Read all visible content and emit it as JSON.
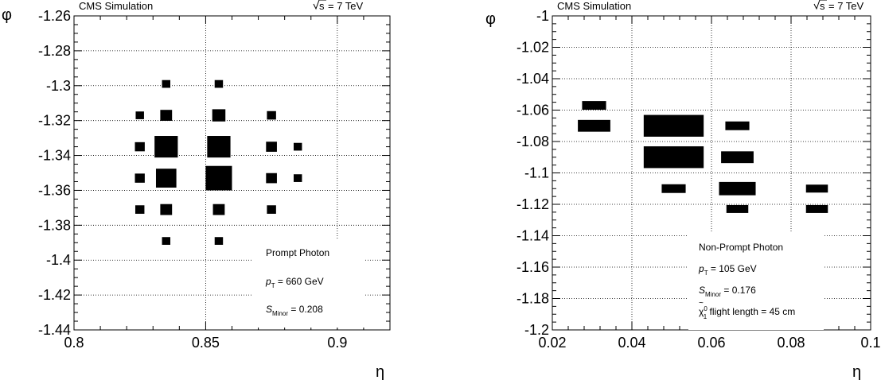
{
  "chart_data": [
    {
      "type": "heatmap",
      "header_left": "CMS Simulation",
      "header_right": "= 7 TeV",
      "header_sqrt": "s",
      "xlabel": "η",
      "ylabel": "φ",
      "xlim": [
        0.8,
        0.92
      ],
      "ylim": [
        -1.44,
        -1.26
      ],
      "xticks": [
        0.8,
        0.85,
        0.9
      ],
      "xtick_labels": [
        "0.8",
        "0.85",
        "0.9"
      ],
      "yticks": [
        -1.44,
        -1.42,
        -1.4,
        -1.38,
        -1.36,
        -1.34,
        -1.32,
        -1.3,
        -1.28,
        -1.26
      ],
      "ytick_labels": [
        "-1.44",
        "-1.42",
        "-1.4",
        "-1.38",
        "-1.36",
        "-1.34",
        "-1.32",
        "-1.3",
        "-1.28",
        "-1.26"
      ],
      "grid": true,
      "cell_width": 0.01,
      "cell_height": 0.0175,
      "cells": [
        {
          "eta": 0.835,
          "phi": -1.299,
          "w": 0.1
        },
        {
          "eta": 0.855,
          "phi": -1.299,
          "w": 0.1
        },
        {
          "eta": 0.825,
          "phi": -1.317,
          "w": 0.1
        },
        {
          "eta": 0.835,
          "phi": -1.317,
          "w": 0.2
        },
        {
          "eta": 0.855,
          "phi": -1.317,
          "w": 0.25
        },
        {
          "eta": 0.875,
          "phi": -1.317,
          "w": 0.12
        },
        {
          "eta": 0.825,
          "phi": -1.335,
          "w": 0.14
        },
        {
          "eta": 0.835,
          "phi": -1.335,
          "w": 0.78
        },
        {
          "eta": 0.855,
          "phi": -1.335,
          "w": 0.78
        },
        {
          "eta": 0.875,
          "phi": -1.335,
          "w": 0.17
        },
        {
          "eta": 0.885,
          "phi": -1.335,
          "w": 0.1
        },
        {
          "eta": 0.825,
          "phi": -1.353,
          "w": 0.14
        },
        {
          "eta": 0.835,
          "phi": -1.353,
          "w": 0.6
        },
        {
          "eta": 0.855,
          "phi": -1.353,
          "w": 1.0
        },
        {
          "eta": 0.875,
          "phi": -1.353,
          "w": 0.17
        },
        {
          "eta": 0.885,
          "phi": -1.353,
          "w": 0.1
        },
        {
          "eta": 0.825,
          "phi": -1.371,
          "w": 0.12
        },
        {
          "eta": 0.835,
          "phi": -1.371,
          "w": 0.2
        },
        {
          "eta": 0.855,
          "phi": -1.371,
          "w": 0.2
        },
        {
          "eta": 0.875,
          "phi": -1.371,
          "w": 0.12
        },
        {
          "eta": 0.835,
          "phi": -1.389,
          "w": 0.1
        },
        {
          "eta": 0.855,
          "phi": -1.389,
          "w": 0.1
        }
      ],
      "annotations": {
        "label": "Prompt Photon",
        "pt_symbol": "p",
        "pt_sub": "T",
        "pt_text": " = 660 GeV",
        "s_symbol": "S",
        "s_sub": "Minor",
        "s_text": " = 0.208"
      }
    },
    {
      "type": "heatmap",
      "header_left": "CMS Simulation",
      "header_right": "= 7 TeV",
      "header_sqrt": "s",
      "xlabel": "η",
      "ylabel": "φ",
      "xlim": [
        0.02,
        0.1
      ],
      "ylim": [
        -1.2,
        -1.0
      ],
      "xticks": [
        0.02,
        0.04,
        0.06,
        0.08,
        0.1
      ],
      "xtick_labels": [
        "0.02",
        "0.04",
        "0.06",
        "0.08",
        "0.1"
      ],
      "yticks": [
        -1.2,
        -1.18,
        -1.16,
        -1.14,
        -1.12,
        -1.1,
        -1.08,
        -1.06,
        -1.04,
        -1.02,
        -1
      ],
      "ytick_labels": [
        "-1.2",
        "-1.18",
        "-1.16",
        "-1.14",
        "-1.12",
        "-1.1",
        "-1.08",
        "-1.06",
        "-1.04",
        "-1.02",
        "-1"
      ],
      "grid": true,
      "cell_width": 0.0174,
      "cell_height": 0.02,
      "cells": [
        {
          "eta": 0.0305,
          "phi": -1.057,
          "w": 0.12
        },
        {
          "eta": 0.0305,
          "phi": -1.07,
          "w": 0.22
        },
        {
          "eta": 0.0505,
          "phi": -1.07,
          "w": 0.75
        },
        {
          "eta": 0.0665,
          "phi": -1.07,
          "w": 0.12
        },
        {
          "eta": 0.0505,
          "phi": -1.09,
          "w": 0.75
        },
        {
          "eta": 0.0665,
          "phi": -1.09,
          "w": 0.22
        },
        {
          "eta": 0.0505,
          "phi": -1.11,
          "w": 0.12
        },
        {
          "eta": 0.0665,
          "phi": -1.11,
          "w": 0.28
        },
        {
          "eta": 0.0865,
          "phi": -1.11,
          "w": 0.1
        },
        {
          "eta": 0.0665,
          "phi": -1.123,
          "w": 0.1
        },
        {
          "eta": 0.0865,
          "phi": -1.123,
          "w": 0.1
        }
      ],
      "annotations": {
        "label": "Non-Prompt Photon",
        "pt_symbol": "p",
        "pt_sub": "T",
        "pt_text": " = 105 GeV",
        "s_symbol": "S",
        "s_sub": "Minor",
        "s_text": " = 0.176",
        "chi_symbol": "χ",
        "chi_sup": "0",
        "chi_sub": "1",
        "chi_text": " flight length = 45 cm"
      }
    }
  ]
}
